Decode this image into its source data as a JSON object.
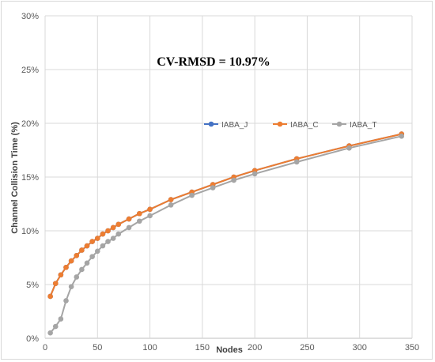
{
  "chart_data": {
    "type": "line",
    "annotation": "CV-RMSD = 10.97%",
    "xlabel": "Nodes",
    "ylabel": "Channel Collision Time   (%)",
    "xlim": [
      0,
      350
    ],
    "ylim": [
      0,
      30
    ],
    "x_ticks": [
      "0",
      "50",
      "100",
      "150",
      "200",
      "250",
      "300",
      "350"
    ],
    "y_ticks": [
      "0%",
      "5%",
      "10%",
      "15%",
      "20%",
      "25%",
      "30%"
    ],
    "grid": true,
    "legend_position": "inside-center-right",
    "series": [
      {
        "name": "IABA_J",
        "color": "#4472C4",
        "x": [
          5,
          10,
          15,
          20,
          25,
          30,
          35,
          40,
          45,
          50,
          55,
          60,
          65,
          70,
          80,
          90,
          100,
          120,
          140,
          160,
          180,
          200,
          240,
          290,
          340
        ],
        "y": [
          3.9,
          5.1,
          5.9,
          6.6,
          7.2,
          7.7,
          8.2,
          8.6,
          9.0,
          9.3,
          9.7,
          10.0,
          10.3,
          10.6,
          11.1,
          11.6,
          12.0,
          12.9,
          13.6,
          14.3,
          15.0,
          15.6,
          16.7,
          17.9,
          19.0
        ]
      },
      {
        "name": "IABA_C",
        "color": "#ED7D31",
        "x": [
          5,
          10,
          15,
          20,
          25,
          30,
          35,
          40,
          45,
          50,
          55,
          60,
          65,
          70,
          80,
          90,
          100,
          120,
          140,
          160,
          180,
          200,
          240,
          290,
          340
        ],
        "y": [
          3.9,
          5.1,
          5.9,
          6.6,
          7.2,
          7.7,
          8.2,
          8.6,
          9.0,
          9.3,
          9.7,
          10.0,
          10.3,
          10.6,
          11.1,
          11.6,
          12.0,
          12.9,
          13.6,
          14.3,
          15.0,
          15.6,
          16.7,
          17.9,
          19.0
        ]
      },
      {
        "name": "IABA_T",
        "color": "#A5A5A5",
        "x": [
          5,
          10,
          15,
          20,
          25,
          30,
          35,
          40,
          45,
          50,
          55,
          60,
          65,
          70,
          80,
          90,
          100,
          120,
          140,
          160,
          180,
          200,
          240,
          290,
          340
        ],
        "y": [
          0.5,
          1.1,
          1.8,
          3.5,
          4.8,
          5.7,
          6.4,
          7.0,
          7.6,
          8.1,
          8.6,
          9.0,
          9.3,
          9.7,
          10.3,
          10.9,
          11.4,
          12.4,
          13.3,
          14.0,
          14.7,
          15.3,
          16.4,
          17.7,
          18.8
        ]
      }
    ]
  }
}
